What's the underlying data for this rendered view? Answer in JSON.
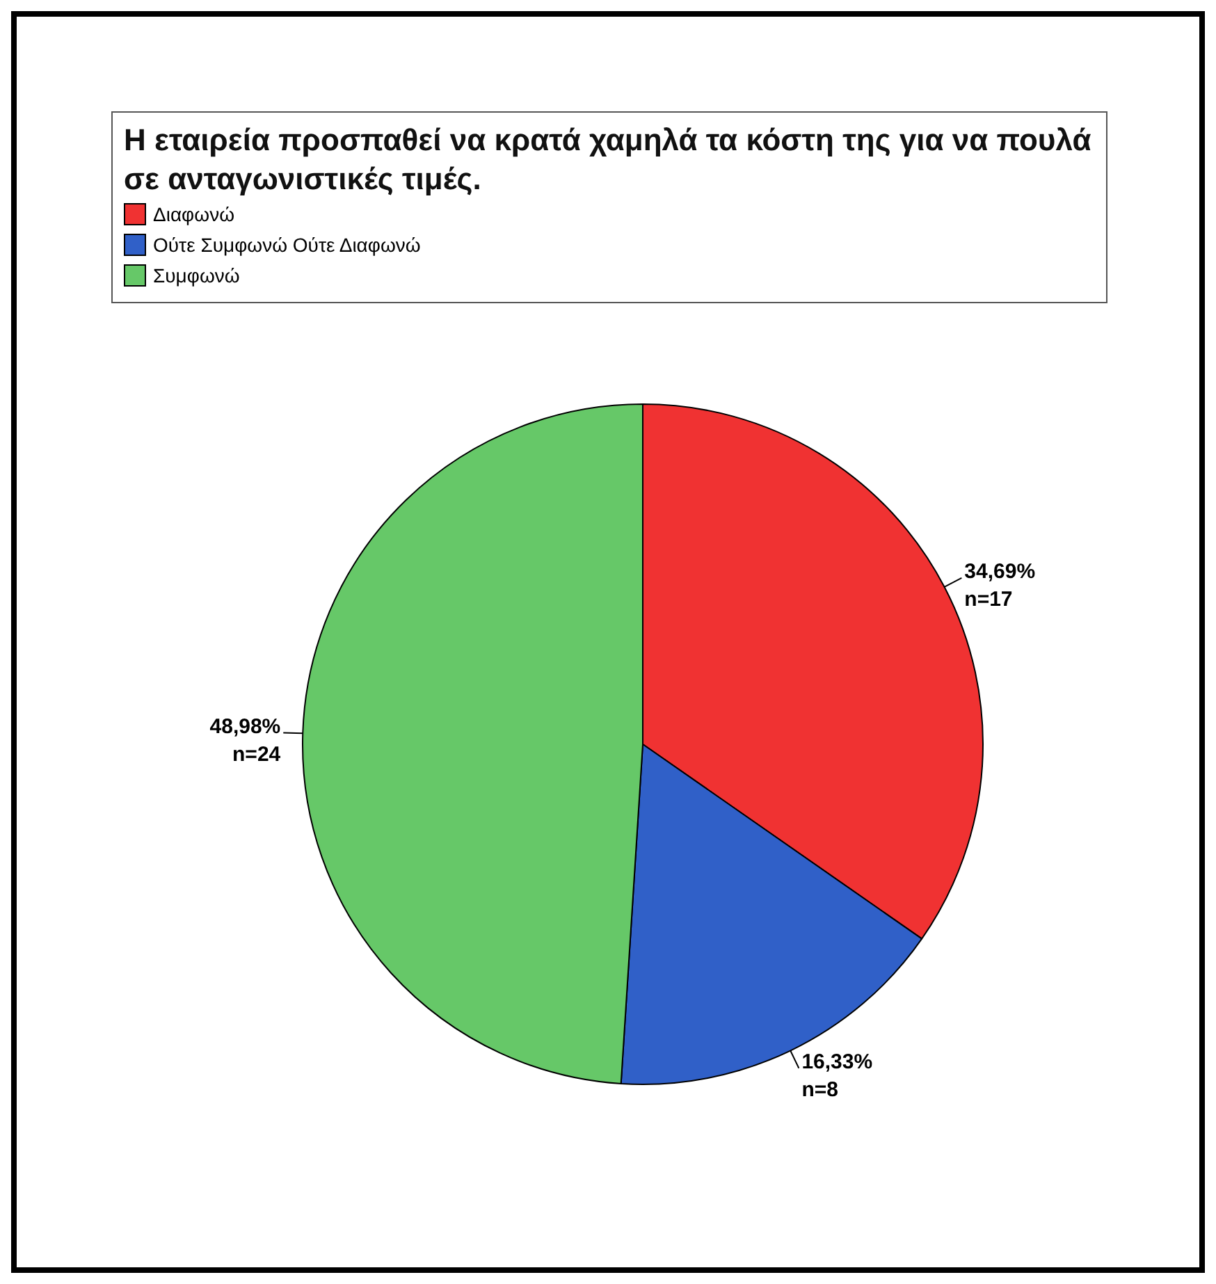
{
  "chart_data": {
    "type": "pie",
    "legend_title": "Η εταιρεία προσπαθεί να κρατά χαμηλά τα κόστη της για να πουλά σε ανταγωνιστικές τιμές.",
    "categories": [
      "Διαφωνώ",
      "Ούτε Συμφωνώ Ούτε Διαφωνώ",
      "Συμφωνώ"
    ],
    "values": [
      34.69,
      16.33,
      48.98
    ],
    "colors": [
      "#f03232",
      "#3060c8",
      "#66c868"
    ],
    "value_labels": [
      "34,69%\nn=17",
      "16,33%\nn=8",
      "48,98%\nn=24"
    ],
    "legend": "top left"
  }
}
